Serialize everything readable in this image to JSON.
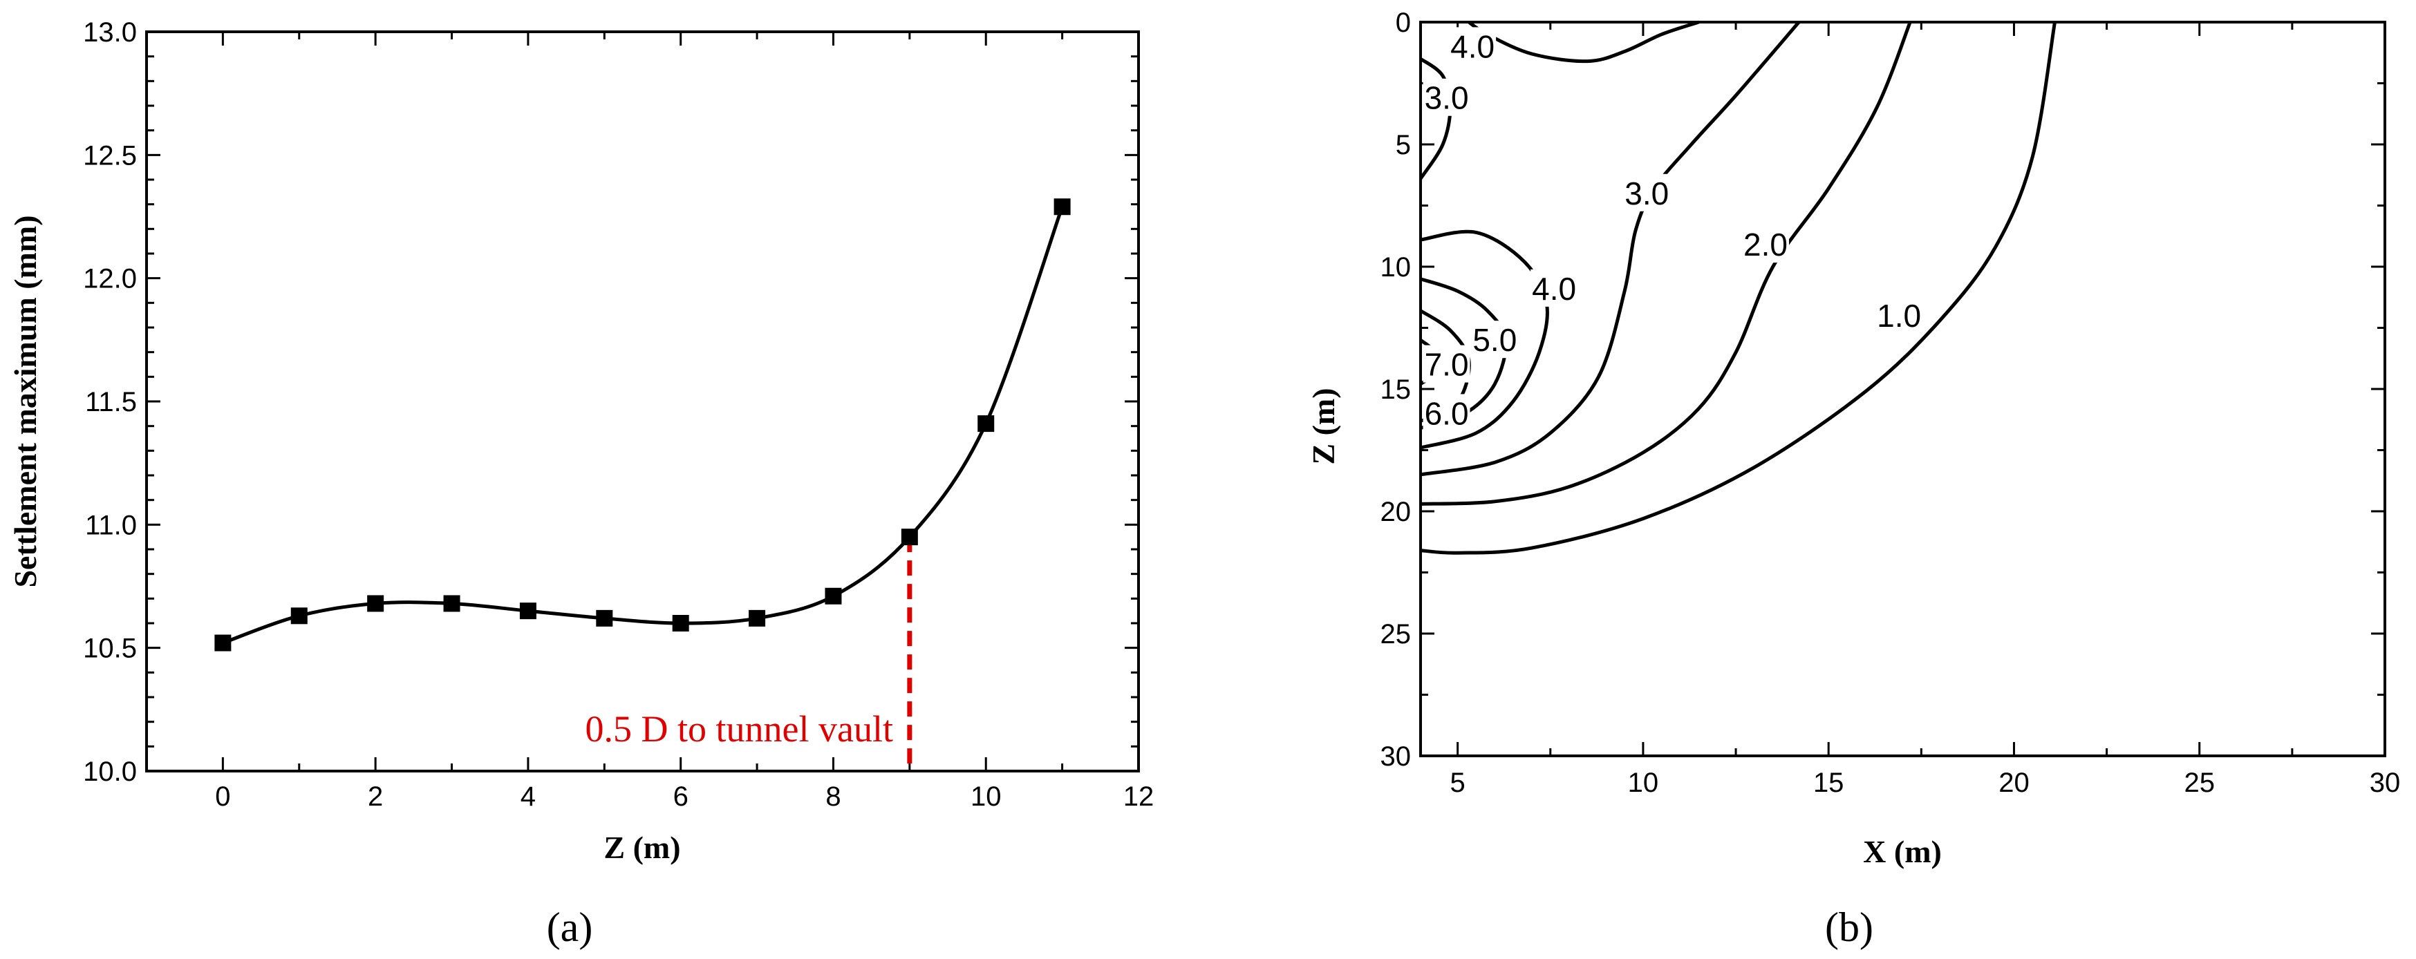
{
  "chart_data": [
    {
      "panel": "(a)",
      "type": "line",
      "xlabel": "Z (m)",
      "ylabel": "Settlement maximum (mm)",
      "xlim": [
        -1,
        12
      ],
      "ylim": [
        10.0,
        13.0
      ],
      "xticks": [
        "0",
        "2",
        "4",
        "6",
        "8",
        "10",
        "12"
      ],
      "yticks": [
        "10.0",
        "10.5",
        "11.0",
        "11.5",
        "12.0",
        "12.5",
        "13.0"
      ],
      "grid": false,
      "marker": "square",
      "color": "#000000",
      "x": [
        0,
        1,
        2,
        3,
        4,
        5,
        6,
        7,
        8,
        9,
        10,
        11
      ],
      "y": [
        10.52,
        10.63,
        10.68,
        10.68,
        10.65,
        10.62,
        10.6,
        10.62,
        10.71,
        10.95,
        11.41,
        12.29
      ],
      "reference_line": {
        "x": 9,
        "color": "#e00000",
        "style": "dashed"
      },
      "annotation": {
        "text": "0.5 D to tunnel vault",
        "color": "#e00000"
      }
    },
    {
      "panel": "(b)",
      "type": "contour",
      "xlabel": "X (m)",
      "ylabel": "Z (m)",
      "xlim": [
        4,
        30
      ],
      "ylim": [
        0,
        30
      ],
      "y_inverted": true,
      "xticks": [
        "5",
        "10",
        "15",
        "20",
        "25",
        "30"
      ],
      "yticks": [
        "0",
        "5",
        "10",
        "15",
        "20",
        "25",
        "30"
      ],
      "grid": false,
      "contours": [
        {
          "level": "1.0",
          "label": {
            "x": 16.9,
            "y": 12.0
          },
          "points": [
            [
              4,
              21.6
            ],
            [
              5,
              21.7
            ],
            [
              7,
              21.5
            ],
            [
              10,
              20.3
            ],
            [
              13,
              18.2
            ],
            [
              16,
              15.1
            ],
            [
              18,
              12.2
            ],
            [
              19.5,
              9.2
            ],
            [
              20.5,
              5.5
            ],
            [
              21.1,
              0
            ]
          ]
        },
        {
          "level": "2.0",
          "label": {
            "x": 13.3,
            "y": 9.1
          },
          "points": [
            [
              4,
              19.7
            ],
            [
              6,
              19.6
            ],
            [
              8,
              19.0
            ],
            [
              10,
              17.6
            ],
            [
              11.5,
              15.8
            ],
            [
              12.5,
              13.5
            ],
            [
              13.5,
              10.0
            ],
            [
              15,
              6.8
            ],
            [
              16.3,
              3.5
            ],
            [
              17.2,
              0
            ]
          ]
        },
        {
          "level": "3.0",
          "label": {
            "x": 10.1,
            "y": 7.0
          },
          "points": [
            [
              4,
              18.5
            ],
            [
              6,
              18.0
            ],
            [
              7.5,
              16.8
            ],
            [
              8.8,
              14.5
            ],
            [
              9.5,
              11.0
            ],
            [
              9.8,
              8.5
            ],
            [
              10.3,
              6.8
            ],
            [
              11.3,
              5.0
            ],
            [
              12.5,
              3.0
            ],
            [
              14.2,
              0
            ]
          ]
        },
        {
          "level": "3.0",
          "label": {
            "x": 4.7,
            "y": 3.1
          },
          "points": [
            [
              4,
              1.5
            ],
            [
              4.6,
              2.2
            ],
            [
              4.8,
              3.5
            ],
            [
              4.6,
              5.0
            ],
            [
              4.0,
              6.4
            ]
          ]
        },
        {
          "level": "4.0",
          "label": {
            "x": 5.4,
            "y": 1.0
          },
          "points": [
            [
              5.3,
              0
            ],
            [
              5.8,
              0.5
            ],
            [
              7,
              1.3
            ],
            [
              8.5,
              1.6
            ],
            [
              9.5,
              1.2
            ],
            [
              10.5,
              0.5
            ],
            [
              11.5,
              0
            ]
          ]
        },
        {
          "level": "4.0",
          "label": {
            "x": 7.6,
            "y": 10.9
          },
          "points": [
            [
              4,
              8.9
            ],
            [
              5.5,
              8.6
            ],
            [
              6.8,
              9.8
            ],
            [
              7.4,
              11.5
            ],
            [
              7.2,
              13.5
            ],
            [
              6.5,
              15.5
            ],
            [
              5.5,
              16.8
            ],
            [
              4,
              17.4
            ]
          ]
        },
        {
          "level": "5.0",
          "label": {
            "x": 6.0,
            "y": 13.0
          },
          "points": [
            [
              4,
              10.5
            ],
            [
              5.0,
              11.0
            ],
            [
              5.8,
              11.8
            ],
            [
              6.3,
              13.0
            ],
            [
              6.0,
              14.8
            ],
            [
              5.2,
              16.0
            ],
            [
              4,
              16.6
            ]
          ]
        },
        {
          "level": "7.0",
          "label": {
            "x": 4.7,
            "y": 14.0
          },
          "points": [
            [
              4,
              13.0
            ],
            [
              4.4,
              13.5
            ],
            [
              4.5,
              14.2
            ],
            [
              4.0,
              14.8
            ]
          ]
        },
        {
          "level": "6.0",
          "label": {
            "x": 4.7,
            "y": 16.0
          },
          "points": [
            [
              4,
              11.8
            ],
            [
              4.8,
              12.6
            ],
            [
              5.3,
              13.8
            ],
            [
              5.1,
              15.3
            ],
            [
              4.5,
              16.1
            ],
            [
              4,
              16.3
            ]
          ]
        }
      ]
    }
  ]
}
